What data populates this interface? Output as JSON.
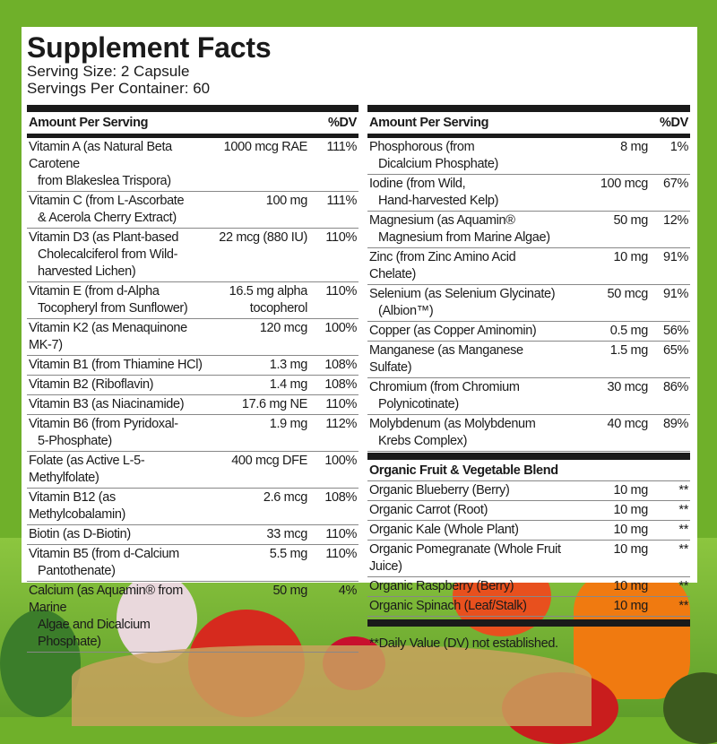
{
  "title": "Supplement Facts",
  "serving_size": "Serving Size: 2 Capsule",
  "servings_per_container": "Servings Per Container: 60",
  "header": {
    "amount": "Amount Per Serving",
    "dv": "%DV"
  },
  "left": [
    {
      "name": "Vitamin A (as Natural Beta Carotene",
      "cont": "from Blakeslea Trispora)",
      "amount": "1000 mcg RAE",
      "dv": "111%"
    },
    {
      "name": "Vitamin C (from L-Ascorbate",
      "cont": "& Acerola Cherry Extract)",
      "amount": "100 mg",
      "dv": "111%"
    },
    {
      "name": "Vitamin D3 (as Plant-based",
      "cont": "Cholecalciferol from Wild-harvested Lichen)",
      "amount": "22 mcg (880 IU)",
      "dv": "110%"
    },
    {
      "name": "Vitamin E (from d-Alpha",
      "cont": "Tocopheryl from Sunflower)",
      "amount": "16.5 mg alpha tocopherol",
      "dv": "110%"
    },
    {
      "name": "Vitamin K2 (as Menaquinone MK-7)",
      "cont": "",
      "amount": "120 mcg",
      "dv": "100%"
    },
    {
      "name": "Vitamin B1 (from Thiamine HCl)",
      "cont": "",
      "amount": "1.3 mg",
      "dv": "108%"
    },
    {
      "name": "Vitamin B2 (Riboflavin)",
      "cont": "",
      "amount": "1.4 mg",
      "dv": "108%"
    },
    {
      "name": "Vitamin B3 (as Niacinamide)",
      "cont": "",
      "amount": "17.6 mg NE",
      "dv": "110%"
    },
    {
      "name": "Vitamin B6 (from Pyridoxal-",
      "cont": "5-Phosphate)",
      "amount": "1.9 mg",
      "dv": "112%"
    },
    {
      "name": "Folate (as Active L-5-Methylfolate)",
      "cont": "",
      "amount": "400 mcg DFE",
      "dv": "100%"
    },
    {
      "name": "Vitamin B12 (as Methylcobalamin)",
      "cont": "",
      "amount": "2.6 mcg",
      "dv": "108%"
    },
    {
      "name": "Biotin (as D-Biotin)",
      "cont": "",
      "amount": "33 mcg",
      "dv": "110%"
    },
    {
      "name": "Vitamin B5 (from d-Calcium",
      "cont": "Pantothenate)",
      "amount": "5.5 mg",
      "dv": "110%"
    },
    {
      "name": "Calcium (as Aquamin® from Marine",
      "cont": "Algae and Dicalcium Phosphate)",
      "amount": "50 mg",
      "dv": "4%"
    }
  ],
  "right": [
    {
      "name": "Phosphorous (from",
      "cont": "Dicalcium Phosphate)",
      "amount": "8 mg",
      "dv": "1%"
    },
    {
      "name": "Iodine (from Wild,",
      "cont": "Hand-harvested Kelp)",
      "amount": "100 mcg",
      "dv": "67%"
    },
    {
      "name": "Magnesium (as Aquamin®",
      "cont": "Magnesium from Marine Algae)",
      "amount": "50 mg",
      "dv": "12%"
    },
    {
      "name": "Zinc (from Zinc Amino Acid Chelate)",
      "cont": "",
      "amount": "10 mg",
      "dv": "91%"
    },
    {
      "name": "Selenium (as Selenium Glycinate)",
      "cont": "(Albion™)",
      "amount": "50 mcg",
      "dv": "91%"
    },
    {
      "name": "Copper (as Copper Aminomin)",
      "cont": "",
      "amount": "0.5 mg",
      "dv": "56%"
    },
    {
      "name": "Manganese (as Manganese Sulfate)",
      "cont": "",
      "amount": "1.5 mg",
      "dv": "65%"
    },
    {
      "name": "Chromium (from Chromium",
      "cont": "Polynicotinate)",
      "amount": "30 mcg",
      "dv": "86%"
    },
    {
      "name": "Molybdenum (as Molybdenum",
      "cont": "Krebs Complex)",
      "amount": "40 mcg",
      "dv": "89%"
    }
  ],
  "blend": {
    "title": "Organic Fruit & Vegetable Blend",
    "items": [
      {
        "name": "Organic Blueberry (Berry)",
        "amount": "10 mg",
        "dv": "**"
      },
      {
        "name": "Organic Carrot (Root)",
        "amount": "10 mg",
        "dv": "**"
      },
      {
        "name": "Organic Kale (Whole Plant)",
        "amount": "10 mg",
        "dv": "**"
      },
      {
        "name": "Organic Pomegranate (Whole Fruit Juice)",
        "amount": "10 mg",
        "dv": "**"
      },
      {
        "name": "Organic Raspberry (Berry)",
        "amount": "10 mg",
        "dv": "**"
      },
      {
        "name": "Organic  Spinach (Leaf/Stalk)",
        "amount": "10 mg",
        "dv": "**"
      }
    ]
  },
  "footnote": "**Daily Value (DV) not established.",
  "colors": {
    "background": "#6fb02a",
    "ink": "#1a1a1a"
  }
}
